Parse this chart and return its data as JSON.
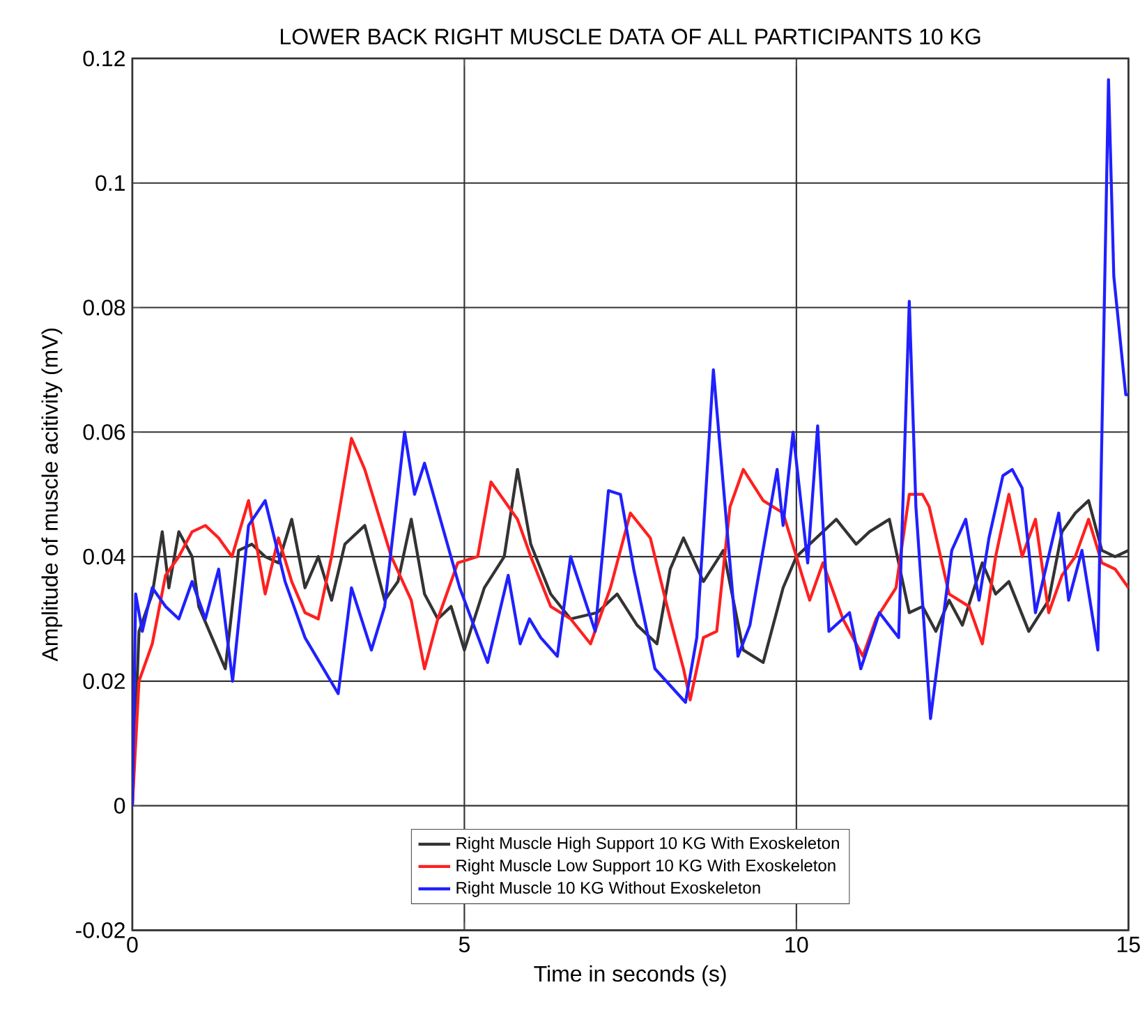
{
  "chart_data": {
    "type": "line",
    "title": "LOWER BACK RIGHT MUSCLE DATA OF ALL PARTICIPANTS 10 KG",
    "xlabel": "Time in seconds (s)",
    "ylabel": "Amplitude of muscle acitivity (mV)",
    "xlim": [
      0,
      15
    ],
    "ylim": [
      -0.02,
      0.12
    ],
    "xticks": [
      0,
      5,
      10,
      15
    ],
    "yticks": [
      -0.02,
      0,
      0.02,
      0.04,
      0.06,
      0.08,
      0.1,
      0.12
    ],
    "grid": true,
    "legend": "bottom",
    "series": [
      {
        "name": "Right Muscle High Support 10 KG With Exoskeleton",
        "color": "#333333",
        "x": [
          0,
          0.1,
          0.3,
          0.45,
          0.55,
          0.7,
          0.9,
          1.0,
          1.2,
          1.4,
          1.6,
          1.8,
          2.0,
          2.2,
          2.4,
          2.6,
          2.8,
          3.0,
          3.2,
          3.5,
          3.8,
          4.0,
          4.2,
          4.4,
          4.6,
          4.8,
          5.0,
          5.3,
          5.6,
          5.8,
          6.0,
          6.3,
          6.6,
          7.0,
          7.3,
          7.6,
          7.9,
          8.1,
          8.3,
          8.6,
          8.9,
          9.2,
          9.5,
          9.8,
          10.0,
          10.3,
          10.6,
          10.9,
          11.1,
          11.4,
          11.7,
          11.9,
          12.1,
          12.3,
          12.5,
          12.8,
          13.0,
          13.2,
          13.5,
          13.8,
          14.0,
          14.2,
          14.4,
          14.6,
          14.8,
          15
        ],
        "values": [
          0,
          0.028,
          0.034,
          0.044,
          0.035,
          0.044,
          0.04,
          0.032,
          0.027,
          0.022,
          0.041,
          0.042,
          0.04,
          0.039,
          0.046,
          0.035,
          0.04,
          0.033,
          0.042,
          0.045,
          0.033,
          0.036,
          0.046,
          0.034,
          0.03,
          0.032,
          0.025,
          0.035,
          0.04,
          0.054,
          0.042,
          0.034,
          0.03,
          0.031,
          0.034,
          0.029,
          0.026,
          0.038,
          0.043,
          0.036,
          0.041,
          0.025,
          0.023,
          0.035,
          0.04,
          0.043,
          0.046,
          0.042,
          0.044,
          0.046,
          0.031,
          0.032,
          0.028,
          0.033,
          0.029,
          0.039,
          0.034,
          0.036,
          0.028,
          0.033,
          0.044,
          0.047,
          0.049,
          0.041,
          0.04,
          0.041
        ]
      },
      {
        "name": "Right Muscle Low Support 10 KG With Exoskeleton",
        "color": "#ff2020",
        "x": [
          0,
          0.1,
          0.3,
          0.5,
          0.7,
          0.9,
          1.1,
          1.3,
          1.5,
          1.75,
          2.0,
          2.2,
          2.4,
          2.6,
          2.8,
          3.0,
          3.3,
          3.5,
          3.7,
          3.9,
          4.2,
          4.4,
          4.6,
          4.9,
          5.2,
          5.4,
          5.8,
          6.0,
          6.3,
          6.6,
          6.9,
          7.2,
          7.5,
          7.8,
          8.1,
          8.3,
          8.4,
          8.6,
          8.8,
          9.0,
          9.2,
          9.5,
          9.8,
          10.0,
          10.2,
          10.4,
          10.7,
          11.0,
          11.2,
          11.5,
          11.7,
          11.9,
          12.0,
          12.3,
          12.6,
          12.8,
          13.0,
          13.2,
          13.4,
          13.6,
          13.8,
          14.0,
          14.2,
          14.4,
          14.6,
          14.8,
          15
        ],
        "values": [
          0,
          0.02,
          0.026,
          0.037,
          0.04,
          0.044,
          0.045,
          0.043,
          0.04,
          0.049,
          0.034,
          0.043,
          0.036,
          0.031,
          0.03,
          0.04,
          0.059,
          0.054,
          0.047,
          0.04,
          0.033,
          0.022,
          0.03,
          0.039,
          0.04,
          0.052,
          0.046,
          0.04,
          0.032,
          0.03,
          0.026,
          0.035,
          0.047,
          0.043,
          0.03,
          0.022,
          0.017,
          0.027,
          0.028,
          0.048,
          0.054,
          0.049,
          0.047,
          0.04,
          0.033,
          0.039,
          0.03,
          0.024,
          0.03,
          0.035,
          0.05,
          0.05,
          0.048,
          0.034,
          0.032,
          0.026,
          0.04,
          0.05,
          0.04,
          0.046,
          0.031,
          0.037,
          0.04,
          0.046,
          0.039,
          0.038,
          0.035
        ]
      },
      {
        "name": "Right Muscle 10 KG Without Exoskeleton",
        "color": "#2020ff",
        "x": [
          0,
          0.05,
          0.15,
          0.3,
          0.5,
          0.7,
          0.9,
          1.1,
          1.3,
          1.51,
          1.75,
          2.0,
          2.3,
          2.6,
          3.1,
          3.3,
          3.6,
          3.8,
          4.1,
          4.25,
          4.4,
          4.93,
          5.35,
          5.66,
          5.84,
          5.98,
          6.15,
          6.4,
          6.6,
          6.97,
          7.17,
          7.35,
          7.55,
          7.87,
          8.33,
          8.5,
          8.75,
          9.12,
          9.3,
          9.71,
          9.8,
          9.95,
          10.17,
          10.32,
          10.49,
          10.8,
          10.97,
          11.25,
          11.54,
          11.7,
          11.8,
          12.02,
          12.34,
          12.55,
          12.75,
          12.9,
          13.11,
          13.25,
          13.4,
          13.6,
          13.95,
          14.1,
          14.3,
          14.54,
          14.7,
          14.78,
          14.96,
          15
        ],
        "values": [
          0,
          0.034,
          0.028,
          0.035,
          0.032,
          0.03,
          0.036,
          0.03,
          0.038,
          0.02,
          0.045,
          0.049,
          0.036,
          0.027,
          0.018,
          0.035,
          0.025,
          0.032,
          0.06,
          0.05,
          0.055,
          0.035,
          0.023,
          0.037,
          0.026,
          0.03,
          0.027,
          0.024,
          0.04,
          0.028,
          0.0506,
          0.05,
          0.038,
          0.022,
          0.0166,
          0.027,
          0.07,
          0.024,
          0.029,
          0.054,
          0.045,
          0.06,
          0.039,
          0.061,
          0.028,
          0.031,
          0.022,
          0.031,
          0.027,
          0.081,
          0.048,
          0.014,
          0.041,
          0.046,
          0.033,
          0.043,
          0.053,
          0.054,
          0.051,
          0.031,
          0.047,
          0.033,
          0.041,
          0.025,
          0.1166,
          0.085,
          0.066,
          0.066
        ]
      }
    ]
  }
}
